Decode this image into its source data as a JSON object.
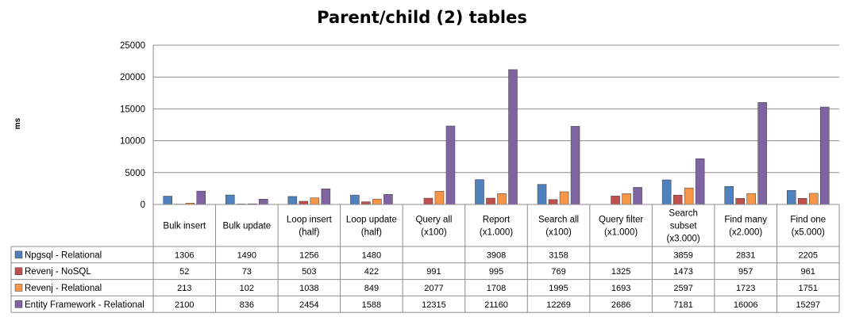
{
  "chart_data": {
    "type": "bar",
    "title": "Parent/child (2) tables",
    "ylabel": "ms",
    "xlabel": "",
    "ylim": [
      0,
      25000
    ],
    "yticks": [
      0,
      5000,
      10000,
      15000,
      20000,
      25000
    ],
    "grid": true,
    "legend": "data-table-left",
    "categories": [
      [
        "Bulk insert"
      ],
      [
        "Bulk update"
      ],
      [
        "Loop insert",
        "(half)"
      ],
      [
        "Loop update",
        "(half)"
      ],
      [
        "Query all",
        "(x100)"
      ],
      [
        "Report",
        "(x1.000)"
      ],
      [
        "Search all",
        "(x100)"
      ],
      [
        "Query filter",
        "(x1.000)"
      ],
      [
        "Search",
        "subset",
        "(x3.000)"
      ],
      [
        "Find many",
        "(x2.000)"
      ],
      [
        "Find one",
        "(x5.000)"
      ]
    ],
    "series": [
      {
        "name": "Npgsql - Relational",
        "color": "#4f81bd",
        "values": [
          1306,
          1490,
          1256,
          1480,
          null,
          3908,
          3158,
          null,
          3859,
          2831,
          2205
        ]
      },
      {
        "name": "Revenj - NoSQL",
        "color": "#c0504d",
        "values": [
          52,
          73,
          503,
          422,
          991,
          995,
          769,
          1325,
          1473,
          957,
          961
        ]
      },
      {
        "name": "Revenj - Relational",
        "color": "#f79646",
        "values": [
          213,
          102,
          1038,
          849,
          2077,
          1708,
          1995,
          1693,
          2597,
          1723,
          1751
        ]
      },
      {
        "name": "Entity Framework - Relational",
        "color": "#8064a2",
        "values": [
          2100,
          836,
          2454,
          1588,
          12315,
          21160,
          12269,
          2686,
          7181,
          16006,
          15297
        ]
      }
    ]
  }
}
